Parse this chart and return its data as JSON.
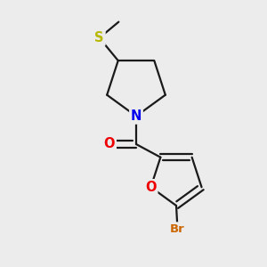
{
  "bg_color": "#ececec",
  "bond_color": "#1a1a1a",
  "bond_width": 1.6,
  "atom_colors": {
    "S": "#b8b800",
    "N": "#0000ee",
    "O": "#ee0000",
    "Br": "#cc6600",
    "C": "#1a1a1a"
  },
  "font_size_atom": 10.5,
  "font_size_br": 9.5,
  "dbo": 0.13
}
